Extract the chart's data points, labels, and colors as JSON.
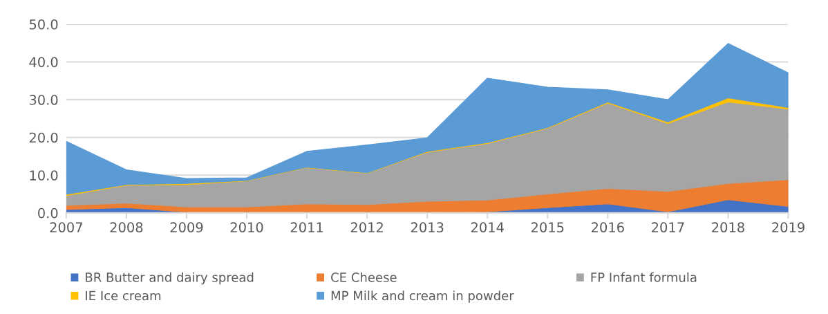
{
  "chart_data": {
    "type": "area",
    "stacked": true,
    "categories": [
      "2007",
      "2008",
      "2009",
      "2010",
      "2011",
      "2012",
      "2013",
      "2014",
      "2015",
      "2016",
      "2017",
      "2018",
      "2019"
    ],
    "series": [
      {
        "name": "BR Butter and dairy spread",
        "color": "#4472c4",
        "values": [
          0.9,
          1.4,
          0.2,
          0.1,
          0.1,
          0.1,
          0.1,
          0.3,
          1.4,
          2.4,
          0.3,
          3.5,
          1.7
        ]
      },
      {
        "name": "CE Cheese",
        "color": "#ed7d31",
        "values": [
          1.1,
          1.2,
          1.4,
          1.5,
          2.3,
          2.1,
          3.0,
          3.1,
          3.6,
          4.1,
          5.4,
          4.3,
          7.1
        ]
      },
      {
        "name": "FP Infant formula",
        "color": "#a5a5a5",
        "values": [
          2.6,
          4.7,
          5.9,
          6.9,
          9.6,
          8.3,
          13.0,
          15.0,
          17.4,
          22.6,
          18.0,
          21.6,
          18.7
        ]
      },
      {
        "name": "IE Ice cream",
        "color": "#ffc000",
        "values": [
          0.3,
          0.2,
          0.3,
          0.1,
          0.1,
          0.1,
          0.2,
          0.2,
          0.2,
          0.3,
          0.4,
          1.1,
          0.4
        ]
      },
      {
        "name": "MP Milk and cream in powder",
        "color": "#5b9bd5",
        "values": [
          14.1,
          3.9,
          1.3,
          0.7,
          4.2,
          7.4,
          3.6,
          17.1,
          10.7,
          3.2,
          5.9,
          14.4,
          9.2
        ]
      }
    ],
    "ylim": [
      0,
      50
    ],
    "yticks": [
      {
        "value": 0,
        "label": "0.0"
      },
      {
        "value": 10,
        "label": "10.0"
      },
      {
        "value": 20,
        "label": "20.0"
      },
      {
        "value": 30,
        "label": "30.0"
      },
      {
        "value": 40,
        "label": "40.0"
      },
      {
        "value": 50,
        "label": "50.0"
      }
    ],
    "grid": "y",
    "legend": "bottom"
  }
}
